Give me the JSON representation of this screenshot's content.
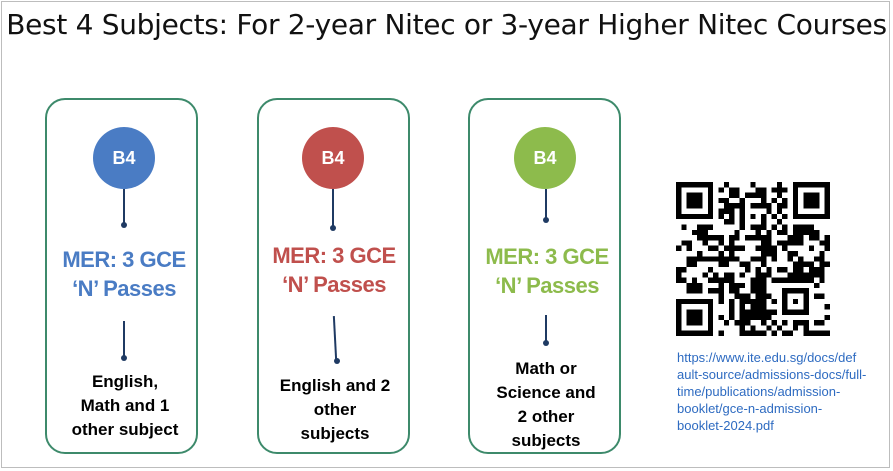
{
  "title": "Best 4 Subjects: For 2-year Nitec or 3-year Higher Nitec Courses",
  "colors": {
    "blue": "#4a7cc4",
    "red": "#c0504d",
    "green": "#8dbb4c",
    "card_border": "#3d8a6b",
    "connector": "#1f3a63",
    "link": "#2e6bc1"
  },
  "cards": [
    {
      "badge": "B4",
      "mer_line1": "MER: 3 GCE",
      "mer_line2": "‘N’ Passes",
      "subjects": [
        "English,",
        "Math and 1",
        "other subject"
      ],
      "color": "#4a7cc4"
    },
    {
      "badge": "B4",
      "mer_line1": "MER: 3 GCE",
      "mer_line2": "‘N’ Passes",
      "subjects": [
        "English and 2",
        "other",
        "subjects"
      ],
      "color": "#c0504d"
    },
    {
      "badge": "B4",
      "mer_line1": "MER: 3 GCE",
      "mer_line2": "‘N’ Passes",
      "subjects": [
        "Math or",
        "Science and",
        "2 other",
        "subjects"
      ],
      "color": "#8dbb4c"
    }
  ],
  "qr_icon": "qr-code",
  "link_lines": [
    "https://www.ite.edu.sg/docs/def",
    "ault-source/admissions-docs/full-",
    "time/publications/admission-",
    "booklet/gce-n-admission-",
    "booklet-2024.pdf"
  ]
}
